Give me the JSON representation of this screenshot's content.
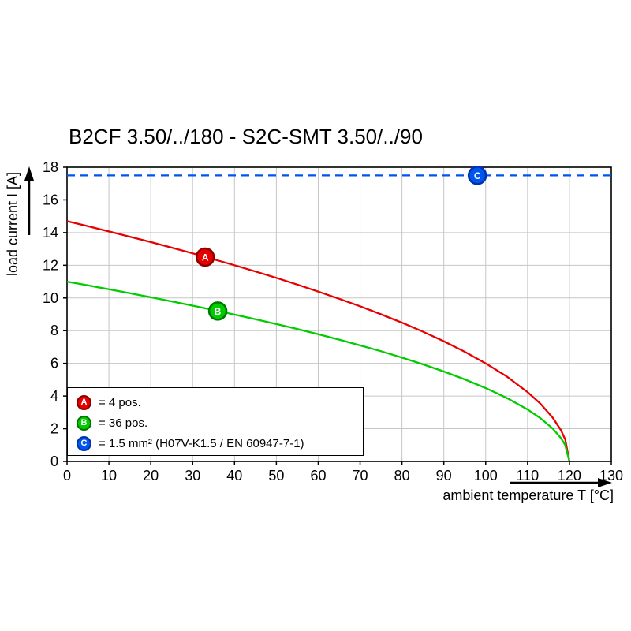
{
  "title": "B2CF 3.50/../180 - S2C-SMT 3.50/../90",
  "chart_data": {
    "type": "line",
    "title": "B2CF 3.50/../180 - S2C-SMT 3.50/../90",
    "xlabel": "ambient temperature T [°C]",
    "ylabel": "load current I [A]",
    "xlim": [
      0,
      130
    ],
    "ylim": [
      0,
      18
    ],
    "xticks": [
      0,
      10,
      20,
      30,
      40,
      50,
      60,
      70,
      80,
      90,
      100,
      110,
      120,
      130
    ],
    "yticks": [
      0,
      2,
      4,
      6,
      8,
      10,
      12,
      14,
      16,
      18
    ],
    "grid": true,
    "legend_position": "bottom-left",
    "colors": {
      "grid": "#c6c6c6",
      "axis": "#000000"
    },
    "series": [
      {
        "name": "A",
        "label": "= 4 pos.",
        "color": "#e60000",
        "ring": "#8f0000",
        "style": "solid",
        "marker_at": [
          33,
          12.5
        ],
        "points": [
          [
            0,
            14.7
          ],
          [
            5,
            14.39
          ],
          [
            10,
            14.07
          ],
          [
            15,
            13.75
          ],
          [
            20,
            13.42
          ],
          [
            25,
            13.08
          ],
          [
            30,
            12.73
          ],
          [
            35,
            12.37
          ],
          [
            40,
            12.0
          ],
          [
            45,
            11.62
          ],
          [
            50,
            11.23
          ],
          [
            55,
            10.82
          ],
          [
            60,
            10.39
          ],
          [
            65,
            9.95
          ],
          [
            70,
            9.49
          ],
          [
            75,
            9.0
          ],
          [
            80,
            8.49
          ],
          [
            85,
            7.94
          ],
          [
            90,
            7.35
          ],
          [
            95,
            6.71
          ],
          [
            100,
            6.0
          ],
          [
            105,
            5.2
          ],
          [
            110,
            4.24
          ],
          [
            113,
            3.55
          ],
          [
            116,
            2.68
          ],
          [
            118,
            1.9
          ],
          [
            119,
            1.34
          ],
          [
            120,
            0
          ]
        ]
      },
      {
        "name": "B",
        "label": "= 36 pos.",
        "color": "#00cc00",
        "ring": "#007700",
        "style": "solid",
        "marker_at": [
          36,
          9.2
        ],
        "points": [
          [
            0,
            11.0
          ],
          [
            5,
            10.77
          ],
          [
            10,
            10.53
          ],
          [
            15,
            10.29
          ],
          [
            20,
            10.04
          ],
          [
            25,
            9.79
          ],
          [
            30,
            9.53
          ],
          [
            35,
            9.26
          ],
          [
            40,
            8.98
          ],
          [
            45,
            8.7
          ],
          [
            50,
            8.4
          ],
          [
            55,
            8.1
          ],
          [
            60,
            7.78
          ],
          [
            65,
            7.45
          ],
          [
            70,
            7.1
          ],
          [
            75,
            6.74
          ],
          [
            80,
            6.35
          ],
          [
            85,
            5.94
          ],
          [
            90,
            5.5
          ],
          [
            95,
            5.02
          ],
          [
            100,
            4.49
          ],
          [
            105,
            3.89
          ],
          [
            110,
            3.18
          ],
          [
            113,
            2.66
          ],
          [
            116,
            2.01
          ],
          [
            118,
            1.42
          ],
          [
            119,
            1.0
          ],
          [
            120,
            0
          ]
        ]
      },
      {
        "name": "C",
        "label": "= 1.5 mm² (H07V-K1.5 / EN 60947-7-1)",
        "color": "#0055ee",
        "ring": "#0033aa",
        "style": "dashed",
        "marker_at": [
          98,
          17.5
        ],
        "points": [
          [
            0,
            17.5
          ],
          [
            130,
            17.5
          ]
        ]
      }
    ]
  }
}
